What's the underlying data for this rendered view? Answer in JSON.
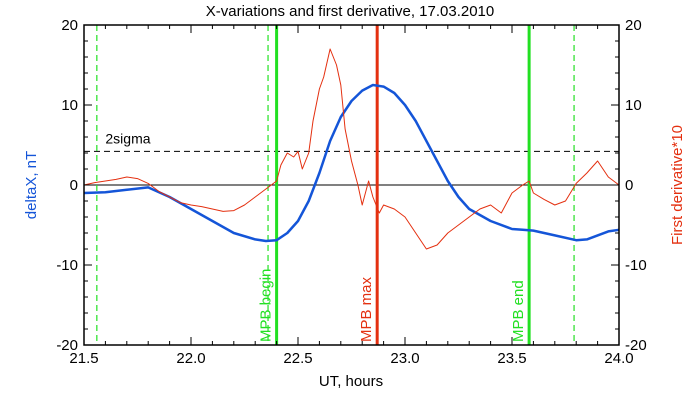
{
  "chart_data": {
    "type": "line",
    "title": "X-variations and first derivative, 17.03.2010",
    "xlabel": "UT, hours",
    "ylabel_left": "deltaX, nT",
    "ylabel_right": "First derivative*10",
    "xlim": [
      21.5,
      24.0
    ],
    "ylim": [
      -20,
      20
    ],
    "xticks": [
      "21.5",
      "22.0",
      "22.5",
      "23.0",
      "23.5",
      "24.0"
    ],
    "xtick_values": [
      21.5,
      22.0,
      22.5,
      23.0,
      23.5,
      24.0
    ],
    "yticks_left": [
      "20",
      "10",
      "0",
      "-10",
      "-20"
    ],
    "yticks_right": [
      "20",
      "10",
      "0",
      "-10",
      "-20"
    ],
    "ytick_values": [
      20,
      10,
      0,
      -10,
      -20
    ],
    "colors": {
      "deltax": "#1455d8",
      "derivative": "#e43010",
      "mpb": "#22e022",
      "max": "#e43010",
      "threshold": "#000000"
    },
    "threshold": {
      "label": "2sigma",
      "value": 4.2
    },
    "zero_line": 0,
    "vlines": [
      {
        "x": 22.4,
        "label": "MPB begin",
        "color": "#22e022",
        "style": "solid"
      },
      {
        "x": 22.87,
        "label": "MPB max",
        "color": "#e43010",
        "style": "solid"
      },
      {
        "x": 23.58,
        "label": "MPB end",
        "color": "#22e022",
        "style": "solid"
      },
      {
        "x": 21.56,
        "label": "",
        "color": "#22e022",
        "style": "dashed"
      },
      {
        "x": 22.36,
        "label": "",
        "color": "#22e022",
        "style": "dashed"
      },
      {
        "x": 23.79,
        "label": "",
        "color": "#22e022",
        "style": "dashed"
      }
    ],
    "series": [
      {
        "name": "deltaX",
        "x": [
          21.5,
          21.6,
          21.7,
          21.8,
          21.9,
          22.0,
          22.1,
          22.2,
          22.3,
          22.35,
          22.4,
          22.45,
          22.5,
          22.55,
          22.6,
          22.65,
          22.7,
          22.75,
          22.8,
          22.85,
          22.9,
          22.95,
          23.0,
          23.05,
          23.1,
          23.15,
          23.2,
          23.25,
          23.3,
          23.4,
          23.5,
          23.55,
          23.6,
          23.7,
          23.8,
          23.85,
          23.9,
          23.95,
          24.0
        ],
        "y": [
          -1.0,
          -0.9,
          -0.6,
          -0.3,
          -1.5,
          -3.0,
          -4.5,
          -6.0,
          -6.8,
          -7.0,
          -6.9,
          -6.0,
          -4.5,
          -2.0,
          1.5,
          5.5,
          8.5,
          10.5,
          11.8,
          12.5,
          12.3,
          11.5,
          10.0,
          8.0,
          5.5,
          3.0,
          0.5,
          -1.5,
          -3.0,
          -4.5,
          -5.5,
          -5.6,
          -5.7,
          -6.3,
          -6.9,
          -6.8,
          -6.3,
          -5.8,
          -5.6
        ]
      },
      {
        "name": "First derivative*10",
        "x": [
          21.5,
          21.55,
          21.6,
          21.65,
          21.7,
          21.75,
          21.8,
          21.85,
          21.9,
          21.95,
          22.0,
          22.05,
          22.1,
          22.15,
          22.2,
          22.25,
          22.3,
          22.35,
          22.4,
          22.42,
          22.45,
          22.48,
          22.5,
          22.52,
          22.55,
          22.57,
          22.6,
          22.62,
          22.65,
          22.68,
          22.7,
          22.72,
          22.75,
          22.78,
          22.8,
          22.83,
          22.85,
          22.88,
          22.9,
          22.95,
          23.0,
          23.05,
          23.1,
          23.15,
          23.2,
          23.25,
          23.3,
          23.35,
          23.4,
          23.45,
          23.5,
          23.55,
          23.58,
          23.6,
          23.65,
          23.7,
          23.75,
          23.8,
          23.85,
          23.9,
          23.95,
          24.0
        ],
        "y": [
          0.0,
          0.3,
          0.5,
          0.7,
          1.0,
          0.8,
          0.2,
          -0.8,
          -1.5,
          -2.2,
          -2.5,
          -2.7,
          -3.0,
          -3.3,
          -3.2,
          -2.5,
          -1.5,
          -0.5,
          0.5,
          2.5,
          4.0,
          3.5,
          4.2,
          2.0,
          4.0,
          8.0,
          12.0,
          13.5,
          17.0,
          15.0,
          12.5,
          7.0,
          3.0,
          0.0,
          -2.5,
          0.5,
          -1.5,
          -3.5,
          -2.5,
          -3.0,
          -4.0,
          -6.0,
          -8.0,
          -7.5,
          -6.0,
          -5.0,
          -4.0,
          -3.0,
          -2.5,
          -3.5,
          -1.0,
          0.0,
          0.5,
          -1.0,
          -1.8,
          -2.5,
          -2.0,
          0.2,
          1.5,
          3.0,
          1.0,
          0.0
        ]
      }
    ]
  }
}
